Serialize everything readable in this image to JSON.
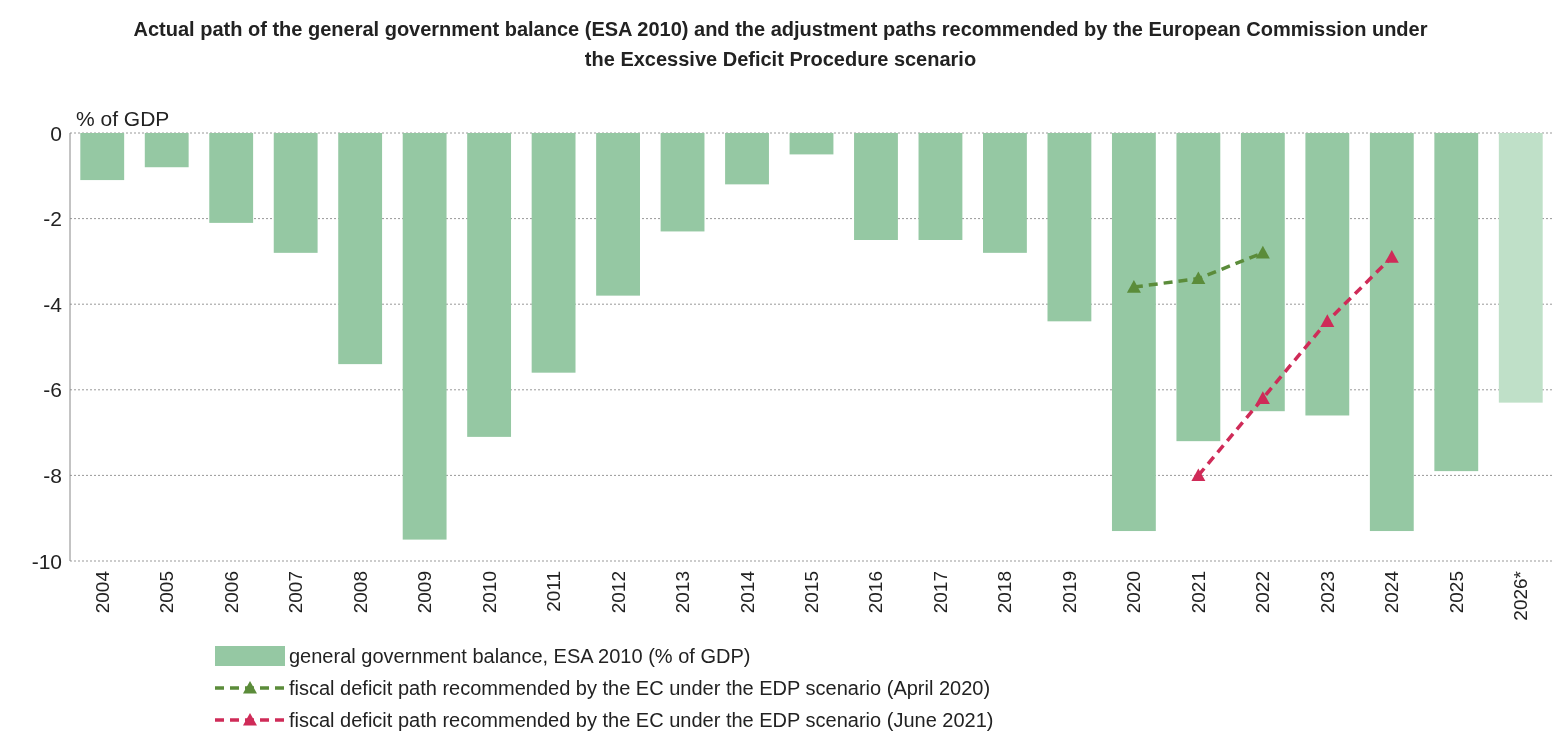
{
  "chart_data": {
    "type": "bar",
    "title": "Actual path of the general government balance (ESA 2010) and the adjustment paths recommended by the European Commission under the Excessive Deficit Procedure scenario",
    "ylabel": "% of GDP",
    "categories": [
      "2004",
      "2005",
      "2006",
      "2007",
      "2008",
      "2009",
      "2010",
      "2011",
      "2012",
      "2013",
      "2014",
      "2015",
      "2016",
      "2017",
      "2018",
      "2019",
      "2020",
      "2021",
      "2022",
      "2023",
      "2024",
      "2025",
      "2026*"
    ],
    "series": [
      {
        "name": "general government balance, ESA 2010 (% of GDP)",
        "color": "#95c8a3",
        "colors": [
          "#95c8a3",
          "#95c8a3",
          "#95c8a3",
          "#95c8a3",
          "#95c8a3",
          "#95c8a3",
          "#95c8a3",
          "#95c8a3",
          "#95c8a3",
          "#95c8a3",
          "#95c8a3",
          "#95c8a3",
          "#95c8a3",
          "#95c8a3",
          "#95c8a3",
          "#95c8a3",
          "#95c8a3",
          "#95c8a3",
          "#95c8a3",
          "#95c8a3",
          "#95c8a3",
          "#95c8a3",
          "#bfe0c8"
        ],
        "values": [
          -1.1,
          -0.8,
          -2.1,
          -2.8,
          -5.4,
          -9.5,
          -7.1,
          -5.6,
          -3.8,
          -2.3,
          -1.2,
          -0.5,
          -2.5,
          -2.5,
          -2.8,
          -4.4,
          -9.3,
          -7.2,
          -6.5,
          -6.6,
          -9.3,
          -7.9,
          -6.3
        ]
      },
      {
        "name": "fiscal deficit path recommended by the EC under the EDP scenario (April 2020)",
        "type": "line",
        "color": "#5b8c3a",
        "line_style": "dashed",
        "marker": "triangle",
        "values": [
          null,
          null,
          null,
          null,
          null,
          null,
          null,
          null,
          null,
          null,
          null,
          null,
          null,
          null,
          null,
          null,
          -3.6,
          -3.4,
          -2.8,
          null,
          null,
          null,
          null
        ]
      },
      {
        "name": "fiscal deficit path recommended by the EC under the EDP scenario (June 2021)",
        "type": "line",
        "color": "#cf2b58",
        "line_style": "dashed",
        "marker": "triangle",
        "values": [
          null,
          null,
          null,
          null,
          null,
          null,
          null,
          null,
          null,
          null,
          null,
          null,
          null,
          null,
          null,
          null,
          null,
          -8.0,
          -6.2,
          -4.4,
          -2.9,
          null,
          null
        ]
      }
    ],
    "ylim": [
      -10,
      0
    ],
    "yticks": [
      -10,
      -8,
      -6,
      -4,
      -2,
      0
    ],
    "grid": "y",
    "legend": "bottom"
  }
}
